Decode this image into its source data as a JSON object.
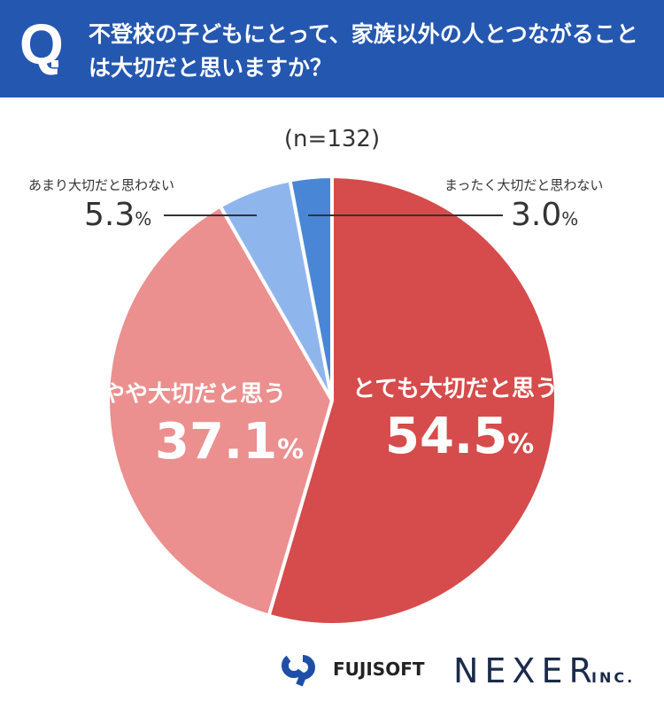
{
  "header": {
    "q_mark": "Q",
    "title": "不登校の子どもにとって、家族以外の人とつながることは大切だと思いますか？"
  },
  "chart_data": {
    "type": "pie",
    "title": "不登校の子どもにとって、家族以外の人とつながることは大切だと思いますか？",
    "sample": "(n=132)",
    "start": "top",
    "direction": "clockwise",
    "slices": [
      {
        "label": "とても大切だと思う",
        "value": 54.5,
        "display": "54.5",
        "color": "#d64b4b"
      },
      {
        "label": "やや大切だと思う",
        "value": 37.1,
        "display": "37.1",
        "color": "#eb8f8f"
      },
      {
        "label": "あまり大切だと思わない",
        "value": 5.3,
        "display": "5.3",
        "color": "#8fb6ec"
      },
      {
        "label": "まったく大切だと思わない",
        "value": 3.0,
        "display": "3.0",
        "color": "#4a86d6"
      }
    ],
    "unit": "%"
  },
  "logos": {
    "fujisoft": "FUJISOFT",
    "nexer": "NEXER",
    "nexer_suffix": "INC."
  }
}
